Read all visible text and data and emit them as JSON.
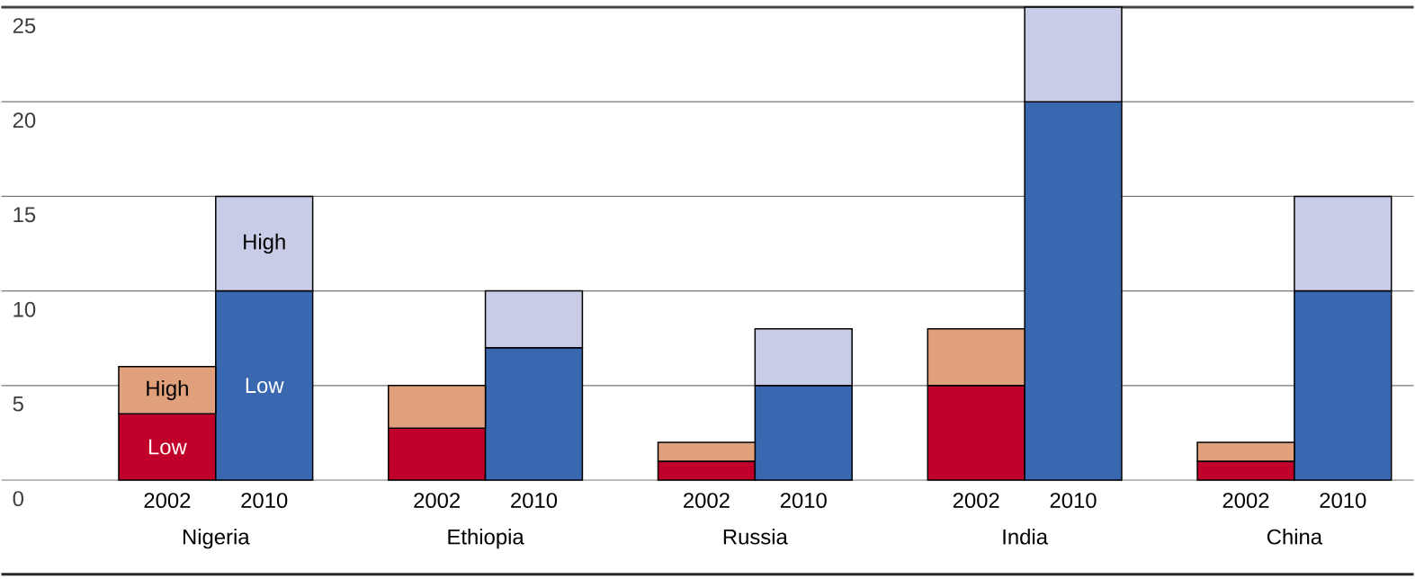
{
  "chart_data": {
    "type": "bar",
    "stacked": true,
    "grid": "y",
    "ylim": [
      0,
      25
    ],
    "yticks": [
      0,
      5,
      10,
      15,
      20,
      25
    ],
    "categories": [
      "2002",
      "2010",
      "2002",
      "2010",
      "2002",
      "2010",
      "2002",
      "2010",
      "2002",
      "2010"
    ],
    "series": [
      {
        "name": "Low",
        "colors": [
          "#c0002a",
          "#3a68b0",
          "#c0002a",
          "#3a68b0",
          "#c0002a",
          "#3a68b0",
          "#c0002a",
          "#3a68b0",
          "#c0002a",
          "#3a68b0"
        ],
        "values": [
          3.5,
          10,
          2.75,
          7,
          1,
          5,
          5,
          20,
          1,
          10
        ]
      },
      {
        "name": "High",
        "colors": [
          "#e0a07c",
          "#c8cce6",
          "#e0a07c",
          "#c8cce6",
          "#e0a07c",
          "#c8cce6",
          "#e0a07c",
          "#c8cce6",
          "#e0a07c",
          "#c8cce6"
        ],
        "values": [
          2.5,
          5,
          2.25,
          3,
          1,
          3,
          3,
          5,
          1,
          5
        ]
      }
    ],
    "annotations": [
      "Nigeria",
      "Ethiopia",
      "Russia",
      "India",
      "China"
    ]
  }
}
